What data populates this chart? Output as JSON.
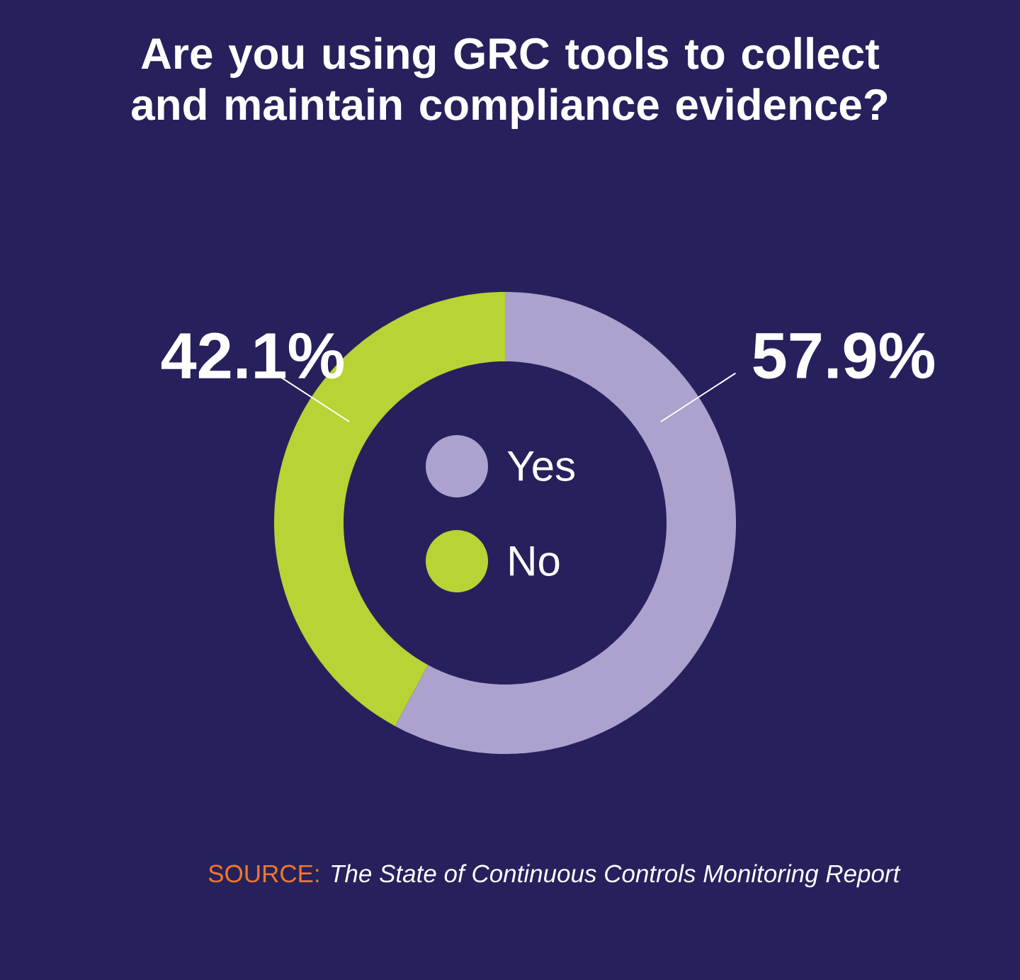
{
  "chart_data": {
    "type": "donut",
    "title": "Are you using GRC tools to collect and maintain compliance evidence?",
    "categories": [
      "Yes",
      "No"
    ],
    "values": [
      57.9,
      42.1
    ],
    "colors": [
      "#ada1ce",
      "#b8d335"
    ],
    "value_labels": [
      "57.9%",
      "42.1%"
    ],
    "legend": "center",
    "annotations": [
      "SOURCE:",
      "*The State of Continuous Controls Monitoring Report*"
    ]
  }
}
